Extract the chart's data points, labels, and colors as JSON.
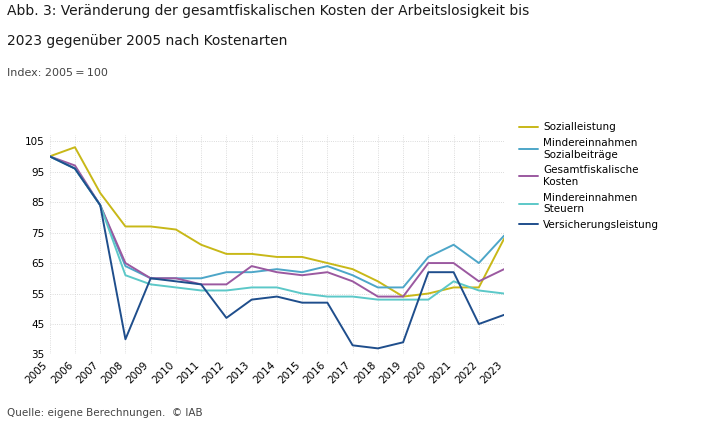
{
  "title_line1": "Abb. 3: Veränderung der gesamtfiskalischen Kosten der Arbeitslosigkeit bis",
  "title_line2": "2023 gegenüber 2005 nach Kostenarten",
  "subtitle": "Index: 2005 = 100",
  "footnote": "Quelle: eigene Berechnungen.  © IAB",
  "years": [
    2005,
    2006,
    2007,
    2008,
    2009,
    2010,
    2011,
    2012,
    2013,
    2014,
    2015,
    2016,
    2017,
    2018,
    2019,
    2020,
    2021,
    2022,
    2023
  ],
  "series": {
    "Sozialleistung": {
      "color": "#c8b818",
      "values": [
        100,
        103,
        88,
        77,
        77,
        76,
        71,
        68,
        68,
        67,
        67,
        65,
        63,
        59,
        54,
        55,
        57,
        57,
        73
      ]
    },
    "Mindereinnahmen\nSozialbeiträge": {
      "color": "#4da6c8",
      "values": [
        100,
        96,
        84,
        64,
        60,
        60,
        60,
        62,
        62,
        63,
        62,
        64,
        61,
        57,
        57,
        67,
        71,
        65,
        74
      ]
    },
    "Gesamtfiskalische\nKosten": {
      "color": "#9b59a0",
      "values": [
        100,
        97,
        84,
        65,
        60,
        60,
        58,
        58,
        64,
        62,
        61,
        62,
        59,
        54,
        54,
        65,
        65,
        59,
        63
      ]
    },
    "Mindereinnahmen\nSteuern": {
      "color": "#5cc8c8",
      "values": [
        100,
        96,
        84,
        61,
        58,
        57,
        56,
        56,
        57,
        57,
        55,
        54,
        54,
        53,
        53,
        53,
        59,
        56,
        55
      ]
    },
    "Versicherungsleistung": {
      "color": "#1f4e8c",
      "values": [
        100,
        96,
        84,
        40,
        60,
        59,
        58,
        47,
        53,
        54,
        52,
        52,
        38,
        37,
        39,
        62,
        62,
        45,
        48
      ]
    }
  },
  "ylim": [
    35,
    107
  ],
  "yticks": [
    35,
    45,
    55,
    65,
    75,
    85,
    95,
    105
  ],
  "background_color": "#ffffff",
  "grid_color": "#d0d0d0",
  "legend_order": [
    "Sozialleistung",
    "Mindereinnahmen\nSozialbeiträge",
    "Gesamtfiskalische\nKosten",
    "Mindereinnahmen\nSteuern",
    "Versicherungsleistung"
  ]
}
